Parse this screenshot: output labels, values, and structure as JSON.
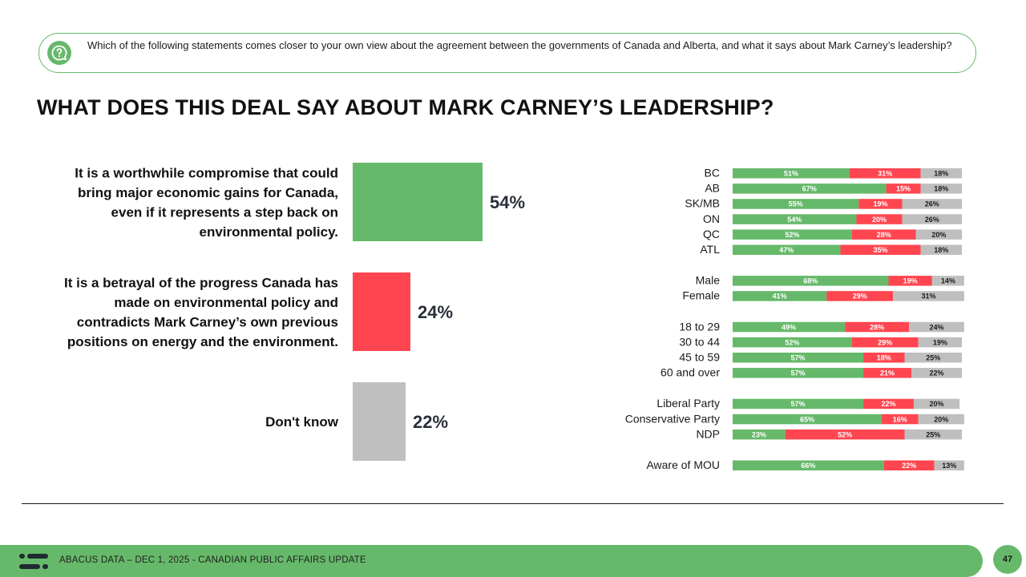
{
  "question": {
    "icon": "question-bubble-icon",
    "text": "Which of the following statements comes closer to your own view about the agreement between the governments of Canada and Alberta, and what it says about Mark Carney’s leadership?"
  },
  "title": "WHAT DOES THIS DEAL SAY ABOUT MARK CARNEY’S LEADERSHIP?",
  "colors": {
    "green": "#66b96a",
    "red": "#ff4650",
    "gray": "#bfbfbf",
    "text": "#1a1a1a"
  },
  "chart_data": [
    {
      "type": "bar",
      "orientation": "horizontal",
      "title": "WHAT DOES THIS DEAL SAY ABOUT MARK CARNEY’S LEADERSHIP?",
      "categories": [
        [
          "It is a worthwhile compromise that could",
          "bring major economic gains for Canada,",
          "even if it represents a step back on",
          "environmental policy."
        ],
        [
          "It is a betrayal of the progress Canada has",
          "made on environmental policy and",
          "contradicts Mark Carney’s own previous",
          "positions on energy and the environment."
        ],
        [
          "Don't know"
        ]
      ],
      "values": [
        54,
        24,
        22
      ],
      "value_labels": [
        "54%",
        "24%",
        "22%"
      ],
      "series_colors": [
        "#66b96a",
        "#ff4650",
        "#bfbfbf"
      ],
      "xlim": [
        0,
        100
      ]
    },
    {
      "type": "bar",
      "orientation": "horizontal",
      "stacked": true,
      "series_names": [
        "It is a worthwhile compromise",
        "It is a betrayal",
        "Don't know"
      ],
      "series_colors": [
        "#66b96a",
        "#ff4650",
        "#bfbfbf"
      ],
      "groups": [
        {
          "rows": [
            {
              "label": "BC",
              "values": [
                51,
                31,
                18
              ]
            },
            {
              "label": "AB",
              "values": [
                67,
                15,
                18
              ]
            },
            {
              "label": "SK/MB",
              "values": [
                55,
                19,
                26
              ]
            },
            {
              "label": "ON",
              "values": [
                54,
                20,
                26
              ]
            },
            {
              "label": "QC",
              "values": [
                52,
                28,
                20
              ]
            },
            {
              "label": "ATL",
              "values": [
                47,
                35,
                18
              ]
            }
          ]
        },
        {
          "rows": [
            {
              "label": "Male",
              "values": [
                68,
                19,
                14
              ]
            },
            {
              "label": "Female",
              "values": [
                41,
                29,
                31
              ]
            }
          ]
        },
        {
          "rows": [
            {
              "label": "18 to 29",
              "values": [
                49,
                28,
                24
              ]
            },
            {
              "label": "30 to 44",
              "values": [
                52,
                29,
                19
              ]
            },
            {
              "label": "45 to 59",
              "values": [
                57,
                18,
                25
              ]
            },
            {
              "label": "60 and over",
              "values": [
                57,
                21,
                22
              ]
            }
          ]
        },
        {
          "rows": [
            {
              "label": "Liberal Party",
              "values": [
                57,
                22,
                20
              ]
            },
            {
              "label": "Conservative Party",
              "values": [
                65,
                16,
                20
              ]
            },
            {
              "label": "NDP",
              "values": [
                23,
                52,
                25
              ]
            }
          ]
        },
        {
          "rows": [
            {
              "label": "Aware of MOU",
              "values": [
                66,
                22,
                13
              ]
            }
          ]
        }
      ]
    }
  ],
  "footer": {
    "logo": "abacus-logo-icon",
    "text": "ABACUS DATA – DEC 1, 2025 - CANADIAN PUBLIC AFFAIRS UPDATE",
    "page_number": "47"
  }
}
